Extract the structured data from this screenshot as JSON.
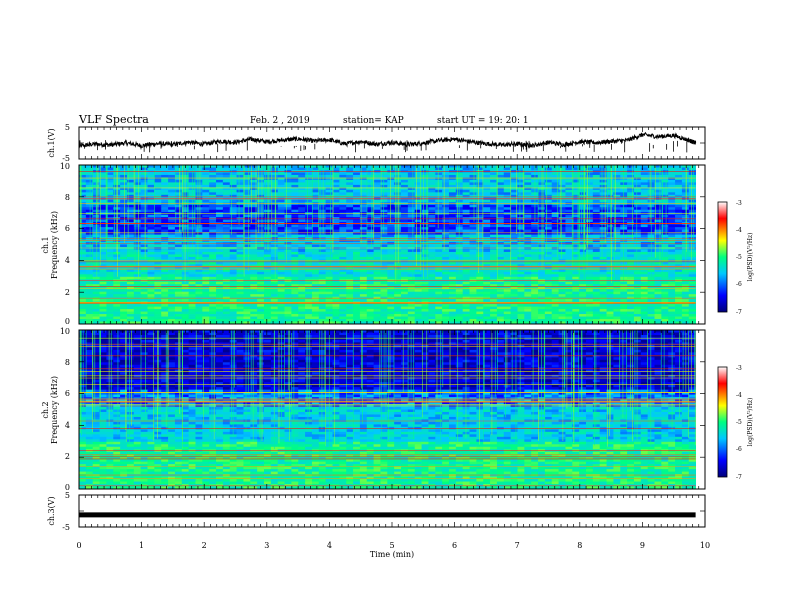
{
  "header": {
    "title": "VLF Spectra",
    "date": "Feb. 2 , 2019",
    "station": "station= KAP",
    "start_ut": "start UT =  19: 20: 1"
  },
  "chart_data": [
    {
      "type": "line",
      "panel": "ch1-waveform",
      "ylabel": "ch.1(V)",
      "ylim": [
        -5,
        5
      ],
      "yticks": [
        "5",
        "-5"
      ],
      "x_unit": "min",
      "xlim": [
        0,
        10
      ],
      "x": [
        0.0,
        0.25,
        0.5,
        0.75,
        1.0,
        1.25,
        1.5,
        1.75,
        2.0,
        2.25,
        2.5,
        2.75,
        3.0,
        3.25,
        3.5,
        3.75,
        4.0,
        4.25,
        4.5,
        4.75,
        5.0,
        5.25,
        5.5,
        5.75,
        6.0,
        6.25,
        6.5,
        6.75,
        7.0,
        7.25,
        7.5,
        7.75,
        8.0,
        8.25,
        8.5,
        8.75,
        9.0,
        9.25,
        9.5,
        9.75,
        9.85
      ],
      "y": [
        -1.0,
        -0.3,
        -0.6,
        0.0,
        -0.8,
        -0.2,
        -0.5,
        0.3,
        -0.4,
        0.6,
        0.2,
        1.2,
        0.4,
        0.9,
        1.3,
        0.6,
        1.0,
        -0.3,
        0.5,
        -0.4,
        0.2,
        -0.5,
        0.0,
        0.8,
        1.2,
        0.4,
        -0.2,
        -0.6,
        -0.3,
        -0.8,
        0.2,
        -0.5,
        0.4,
        0.1,
        0.5,
        0.8,
        2.6,
        2.0,
        2.4,
        0.8,
        0.0
      ]
    },
    {
      "type": "heatmap",
      "panel": "ch1-spectrogram",
      "ylabel_top": "ch.1",
      "ylabel": "Frequency (kHz)",
      "ylim": [
        0,
        10
      ],
      "yticks": [
        "0",
        "2",
        "4",
        "6",
        "8",
        "10"
      ],
      "xlim": [
        0,
        10
      ],
      "x_extent_min": 9.85,
      "colorbar_label": "log(PSD)(V²/Hz)",
      "colorbar_ticks": [
        "-3",
        "-4",
        "-5",
        "-6",
        "-7"
      ],
      "zlim": [
        -7,
        -3
      ],
      "colorscale": [
        "#00007a",
        "#0000ff",
        "#00c8ff",
        "#00ff80",
        "#ffff00",
        "#ff0000",
        "#ffffff"
      ]
    },
    {
      "type": "heatmap",
      "panel": "ch2-spectrogram",
      "ylabel_top": "ch.2",
      "ylabel": "Frequency (kHz)",
      "ylim": [
        0,
        10
      ],
      "yticks": [
        "0",
        "2",
        "4",
        "6",
        "8",
        "10"
      ],
      "xlim": [
        0,
        10
      ],
      "x_extent_min": 9.85,
      "colorbar_label": "log(PSD)(V²/Hz)",
      "colorbar_ticks": [
        "-3",
        "-4",
        "-5",
        "-6",
        "-7"
      ],
      "zlim": [
        -7,
        -3
      ],
      "colorscale": [
        "#00007a",
        "#0000ff",
        "#00c8ff",
        "#00ff80",
        "#ffff00",
        "#ff0000",
        "#ffffff"
      ]
    },
    {
      "type": "line",
      "panel": "ch3-waveform",
      "ylabel": "ch.3(V)",
      "ylim": [
        -5,
        5
      ],
      "yticks": [
        "5",
        "-5"
      ],
      "xlim": [
        0,
        10
      ],
      "x": [
        0,
        9.85
      ],
      "y": [
        -1.2,
        -1.2
      ],
      "xlabel": "Time (min)",
      "xticks": [
        "0",
        "1",
        "2",
        "3",
        "4",
        "5",
        "6",
        "7",
        "8",
        "9",
        "10"
      ]
    }
  ]
}
